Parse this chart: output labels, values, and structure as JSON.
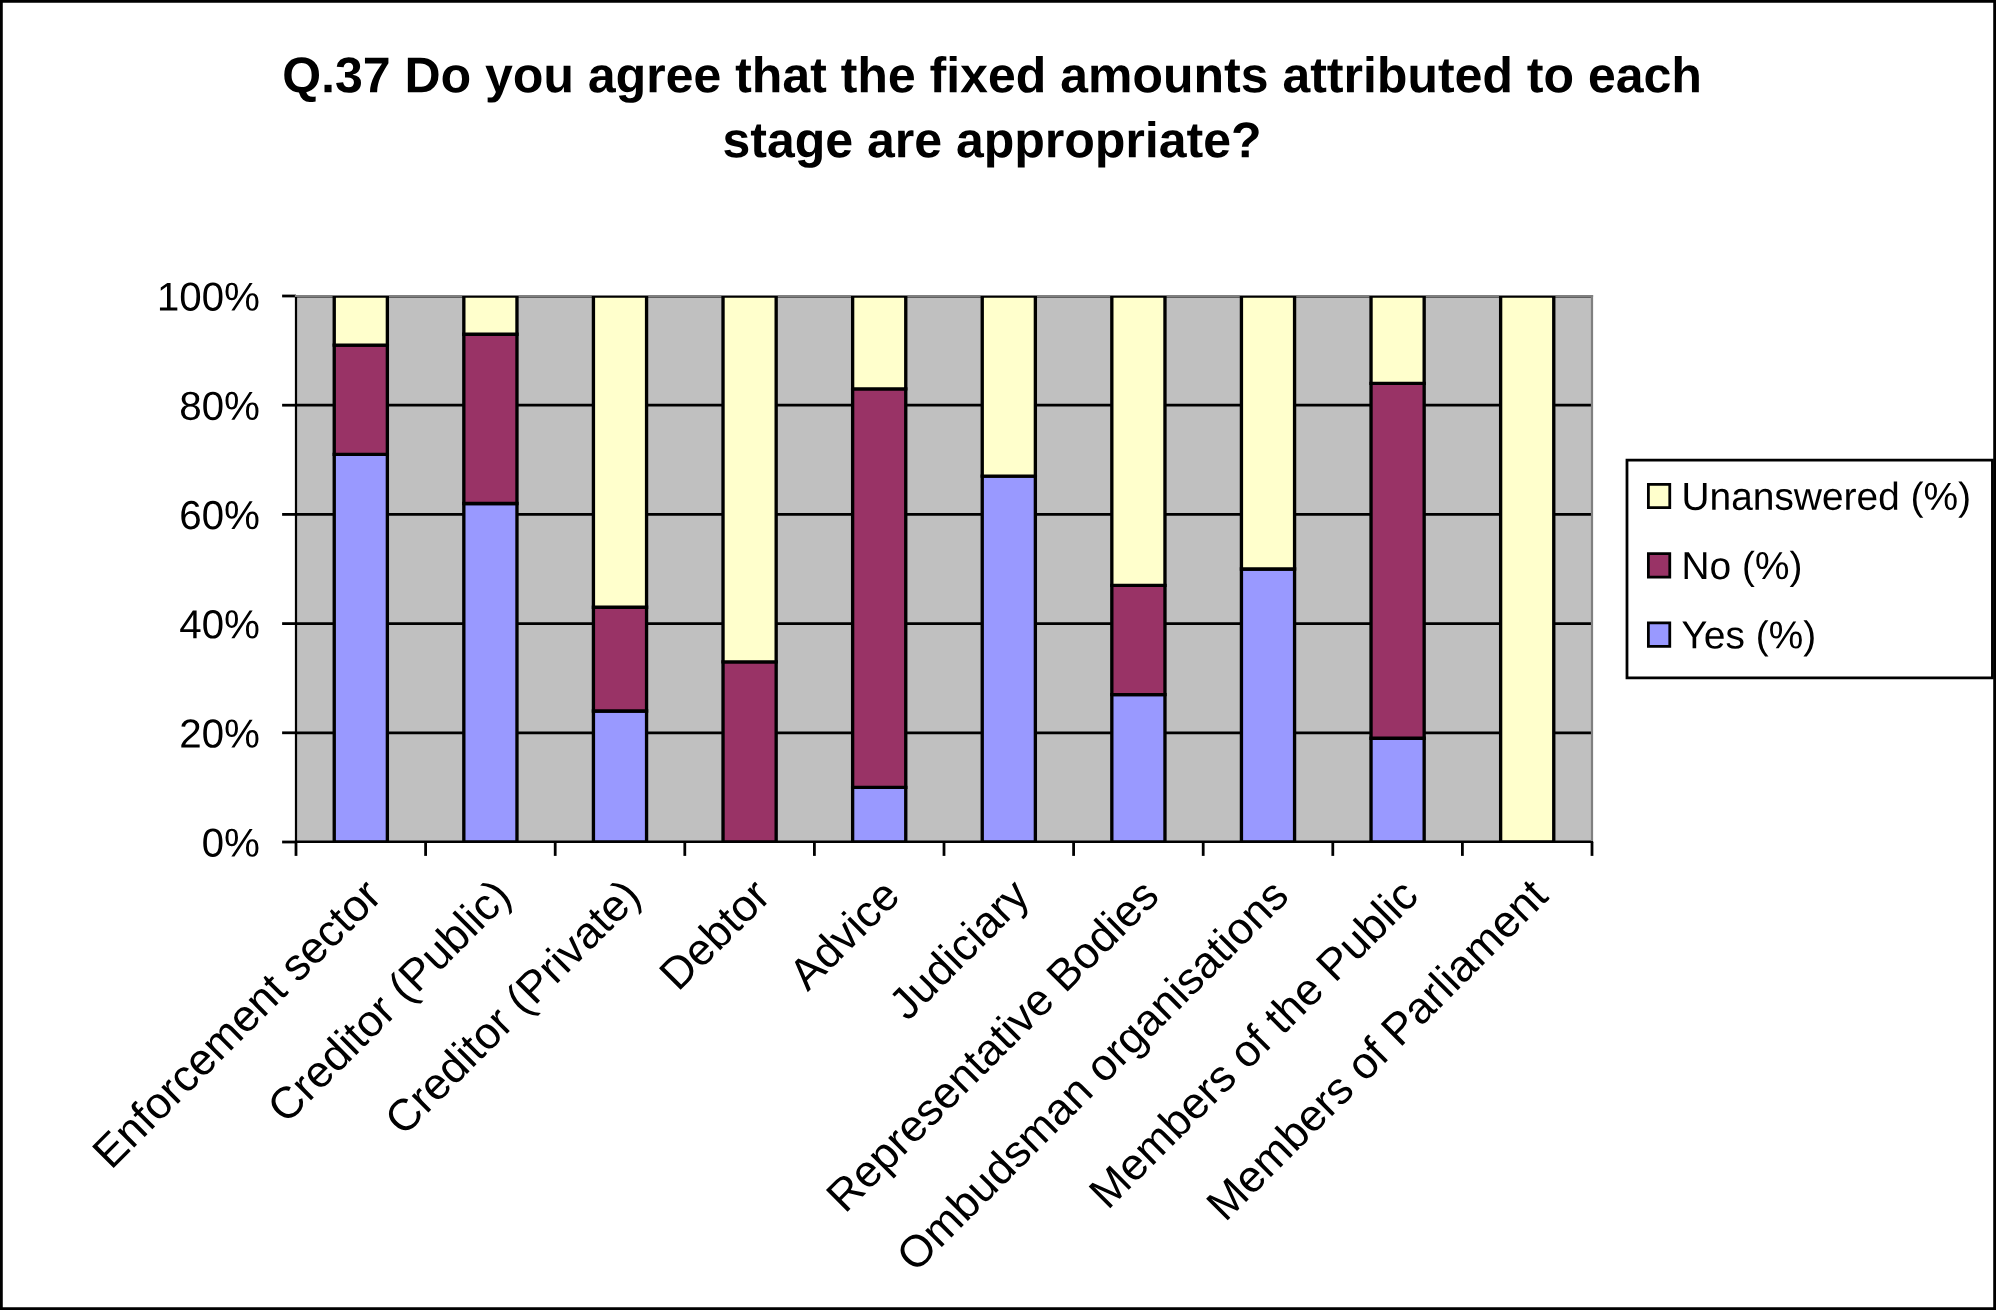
{
  "chart_data": {
    "type": "bar",
    "stacked": true,
    "title": "Q.37 Do you agree that the fixed amounts attributed to each stage are appropriate?",
    "categories": [
      "Enforcement sector",
      "Creditor (Public)",
      "Creditor (Private)",
      "Debtor",
      "Advice",
      "Judiciary",
      "Representative Bodies",
      "Ombudsman organisations",
      "Members of the Public",
      "Members of Parliament"
    ],
    "series": [
      {
        "name": "Yes (%)",
        "color": "#9999ff",
        "values": [
          71,
          62,
          24,
          0,
          10,
          67,
          27,
          50,
          19,
          0
        ]
      },
      {
        "name": "No (%)",
        "color": "#993366",
        "values": [
          20,
          31,
          19,
          33,
          73,
          0,
          20,
          0,
          65,
          0
        ]
      },
      {
        "name": "Unanswered (%)",
        "color": "#ffffcc",
        "values": [
          9,
          7,
          57,
          67,
          17,
          33,
          53,
          50,
          16,
          100
        ]
      }
    ],
    "ylim": [
      0,
      100
    ],
    "yticks": [
      {
        "value": 0,
        "label": "0%"
      },
      {
        "value": 20,
        "label": "20%"
      },
      {
        "value": 40,
        "label": "40%"
      },
      {
        "value": 60,
        "label": "60%"
      },
      {
        "value": 80,
        "label": "80%"
      },
      {
        "value": 100,
        "label": "100%"
      }
    ],
    "grid": "y",
    "legend": "right"
  }
}
